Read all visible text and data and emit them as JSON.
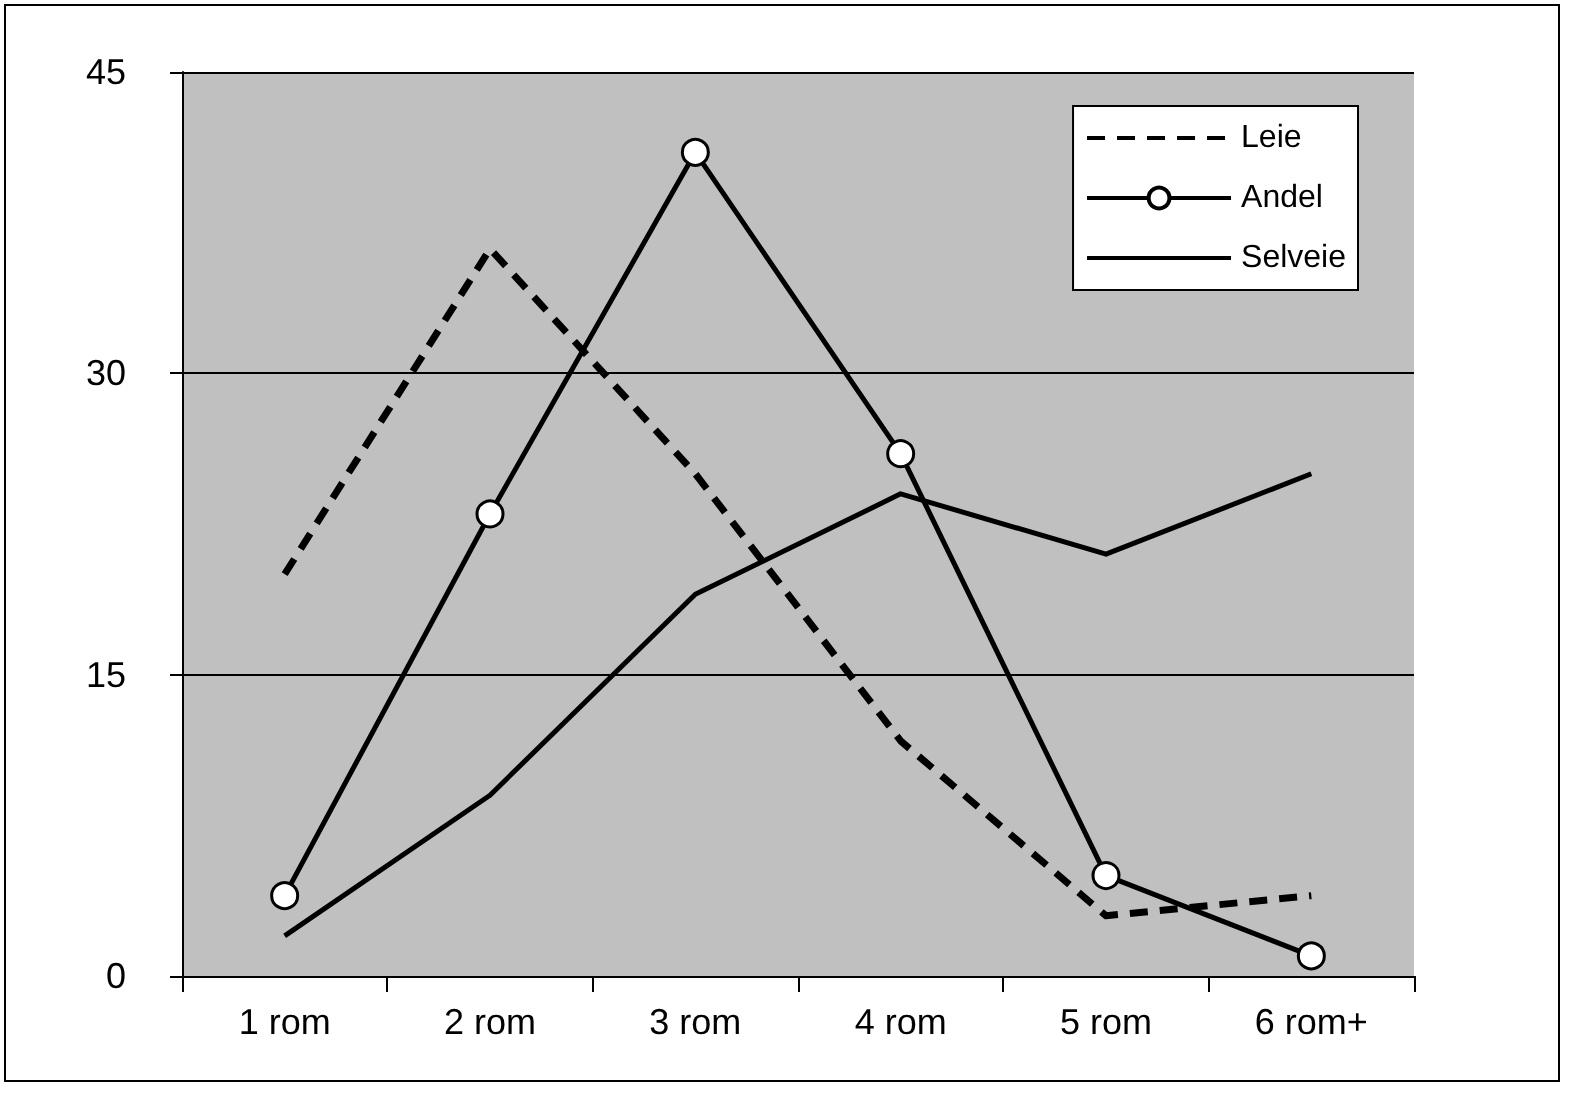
{
  "chart_data": {
    "type": "line",
    "categories": [
      "1 rom",
      "2 rom",
      "3 rom",
      "4 rom",
      "5 rom",
      "6 rom+"
    ],
    "series": [
      {
        "name": "Leie",
        "color": "#000000",
        "line_style": "dashed",
        "marker": "none",
        "values": [
          20,
          36.2,
          25,
          11.7,
          3,
          4
        ]
      },
      {
        "name": "Andel",
        "color": "#000000",
        "line_style": "solid",
        "marker": "circle",
        "values": [
          4,
          23,
          41,
          26,
          5,
          1
        ]
      },
      {
        "name": "Selveie",
        "color": "#000000",
        "line_style": "solid",
        "marker": "none",
        "values": [
          2,
          9,
          19,
          24,
          21,
          25
        ]
      }
    ],
    "ylim": [
      0,
      45
    ],
    "yticks": [
      0,
      15,
      30,
      45
    ],
    "grid": "y",
    "legend": "top right"
  }
}
